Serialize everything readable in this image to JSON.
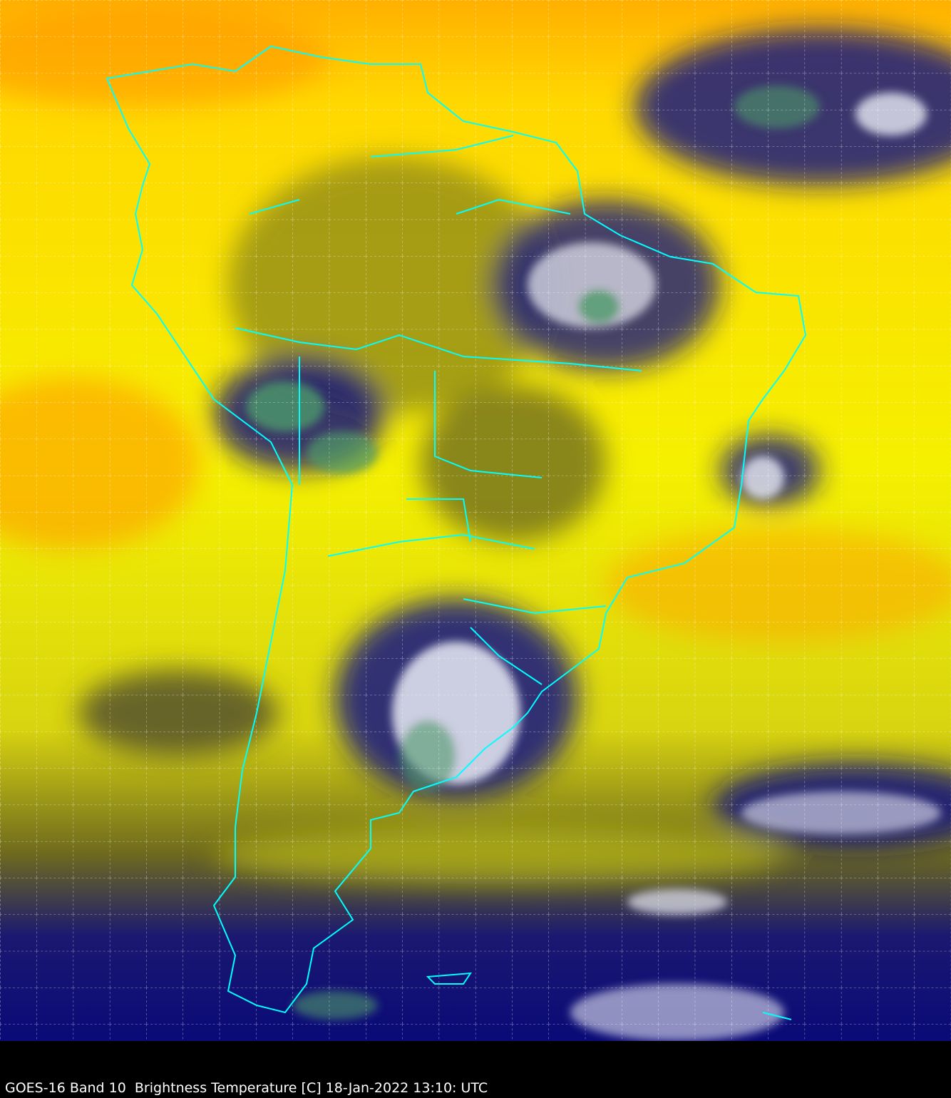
{
  "caption": "GOES-16 Band 10  Brightness Temperature [C] 18-Jan-2022 13:10: UTC",
  "colors": {
    "warm_orange": "#ff9a00",
    "yellow": "#ffff00",
    "olive": "#6e6a1e",
    "navy": "#0a0a78",
    "cloud_white": "#e8eaf4",
    "cold_green": "#4e9a6a",
    "border_cyan": "#00ffff",
    "grid": "#ffffff"
  },
  "grid": {
    "style": "dashed",
    "visible": true
  }
}
